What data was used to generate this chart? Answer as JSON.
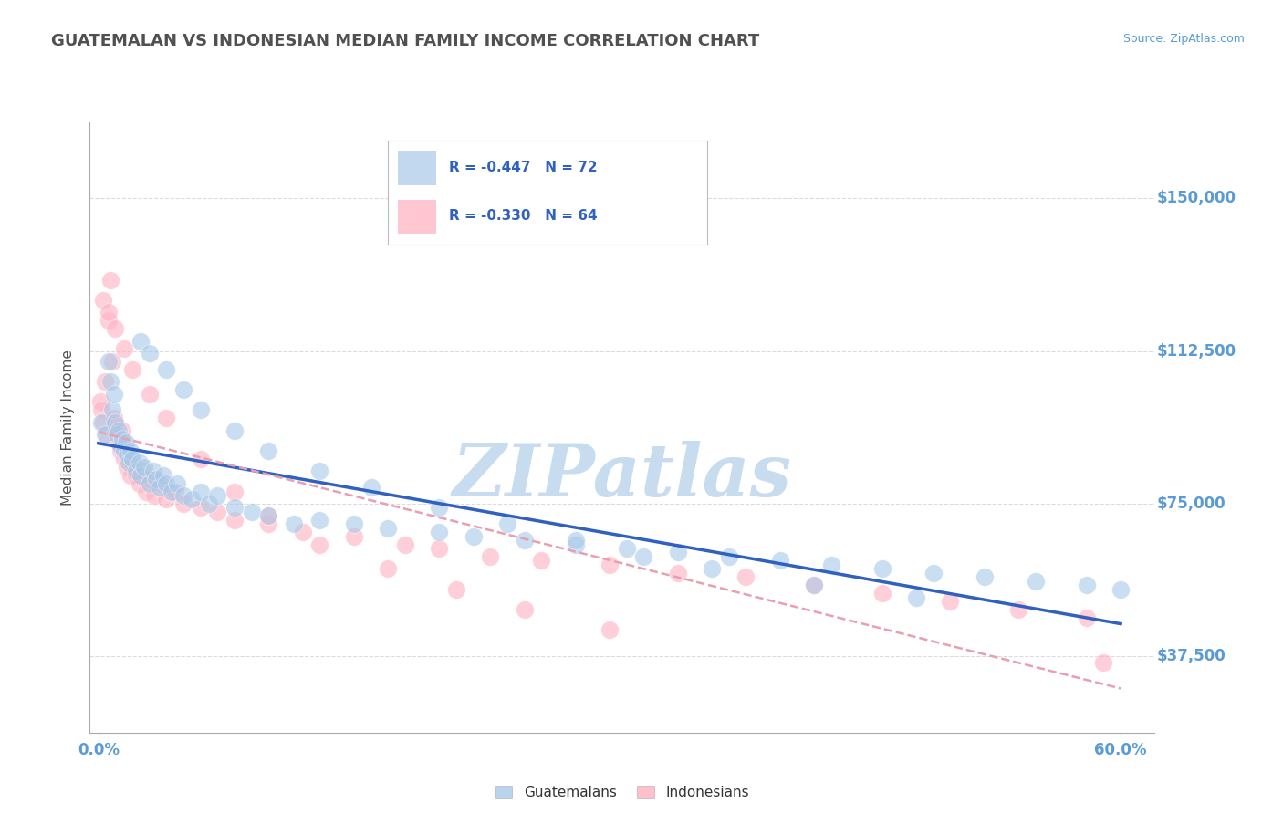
{
  "title": "GUATEMALAN VS INDONESIAN MEDIAN FAMILY INCOME CORRELATION CHART",
  "source_text": "Source: ZipAtlas.com",
  "ylabel": "Median Family Income",
  "xlim": [
    -0.005,
    0.62
  ],
  "ylim": [
    18750,
    168750
  ],
  "yticks": [
    37500,
    75000,
    112500,
    150000
  ],
  "ytick_labels": [
    "$37,500",
    "$75,000",
    "$112,500",
    "$150,000"
  ],
  "xtick_positions": [
    0.0,
    0.6
  ],
  "xtick_labels": [
    "0.0%",
    "60.0%"
  ],
  "guatemalan_R": -0.447,
  "guatemalan_N": 72,
  "indonesian_R": -0.33,
  "indonesian_N": 64,
  "blue_scatter_color": "#A8C8E8",
  "pink_scatter_color": "#FFB0C0",
  "blue_line_color": "#3060C0",
  "pink_line_color": "#E06080",
  "pink_line_dashed_color": "#E8A0B0",
  "title_color": "#505050",
  "axis_label_color": "#505050",
  "tick_color": "#5B9BD5",
  "grid_color": "#D8D8D8",
  "watermark_color": "#C8DCF0",
  "legend_R_color": "#3060C0",
  "legend_box_color": "#E8E8E8",
  "background_color": "#FFFFFF",
  "guatemalan_x": [
    0.002,
    0.004,
    0.006,
    0.007,
    0.008,
    0.009,
    0.01,
    0.011,
    0.012,
    0.013,
    0.014,
    0.015,
    0.016,
    0.017,
    0.018,
    0.019,
    0.02,
    0.022,
    0.024,
    0.025,
    0.027,
    0.03,
    0.032,
    0.034,
    0.036,
    0.038,
    0.04,
    0.043,
    0.046,
    0.05,
    0.055,
    0.06,
    0.065,
    0.07,
    0.08,
    0.09,
    0.1,
    0.115,
    0.13,
    0.15,
    0.17,
    0.2,
    0.22,
    0.25,
    0.28,
    0.31,
    0.34,
    0.37,
    0.4,
    0.43,
    0.46,
    0.49,
    0.52,
    0.55,
    0.58,
    0.6,
    0.025,
    0.03,
    0.04,
    0.05,
    0.06,
    0.08,
    0.1,
    0.13,
    0.16,
    0.2,
    0.24,
    0.28,
    0.32,
    0.36,
    0.42,
    0.48
  ],
  "guatemalan_y": [
    95000,
    92000,
    110000,
    105000,
    98000,
    102000,
    95000,
    92000,
    93000,
    89000,
    91000,
    88000,
    90000,
    87000,
    85000,
    88000,
    86000,
    83000,
    85000,
    82000,
    84000,
    80000,
    83000,
    81000,
    79000,
    82000,
    80000,
    78000,
    80000,
    77000,
    76000,
    78000,
    75000,
    77000,
    74000,
    73000,
    72000,
    70000,
    71000,
    70000,
    69000,
    68000,
    67000,
    66000,
    65000,
    64000,
    63000,
    62000,
    61000,
    60000,
    59000,
    58000,
    57000,
    56000,
    55000,
    54000,
    115000,
    112000,
    108000,
    103000,
    98000,
    93000,
    88000,
    83000,
    79000,
    74000,
    70000,
    66000,
    62000,
    59000,
    55000,
    52000
  ],
  "indonesian_x": [
    0.001,
    0.002,
    0.003,
    0.004,
    0.005,
    0.006,
    0.007,
    0.008,
    0.009,
    0.01,
    0.011,
    0.012,
    0.013,
    0.014,
    0.015,
    0.016,
    0.017,
    0.018,
    0.019,
    0.02,
    0.022,
    0.024,
    0.026,
    0.028,
    0.03,
    0.033,
    0.036,
    0.04,
    0.045,
    0.05,
    0.06,
    0.07,
    0.08,
    0.1,
    0.12,
    0.15,
    0.18,
    0.2,
    0.23,
    0.26,
    0.3,
    0.34,
    0.38,
    0.42,
    0.46,
    0.5,
    0.54,
    0.58,
    0.59,
    0.003,
    0.006,
    0.01,
    0.015,
    0.02,
    0.03,
    0.04,
    0.06,
    0.08,
    0.1,
    0.13,
    0.17,
    0.21,
    0.25,
    0.3
  ],
  "indonesian_y": [
    100000,
    98000,
    95000,
    105000,
    92000,
    120000,
    130000,
    110000,
    96000,
    92000,
    94000,
    90000,
    88000,
    93000,
    86000,
    89000,
    84000,
    87000,
    82000,
    85000,
    82000,
    80000,
    83000,
    78000,
    81000,
    77000,
    80000,
    76000,
    78000,
    75000,
    74000,
    73000,
    71000,
    70000,
    68000,
    67000,
    65000,
    64000,
    62000,
    61000,
    60000,
    58000,
    57000,
    55000,
    53000,
    51000,
    49000,
    47000,
    36000,
    125000,
    122000,
    118000,
    113000,
    108000,
    102000,
    96000,
    86000,
    78000,
    72000,
    65000,
    59000,
    54000,
    49000,
    44000
  ]
}
